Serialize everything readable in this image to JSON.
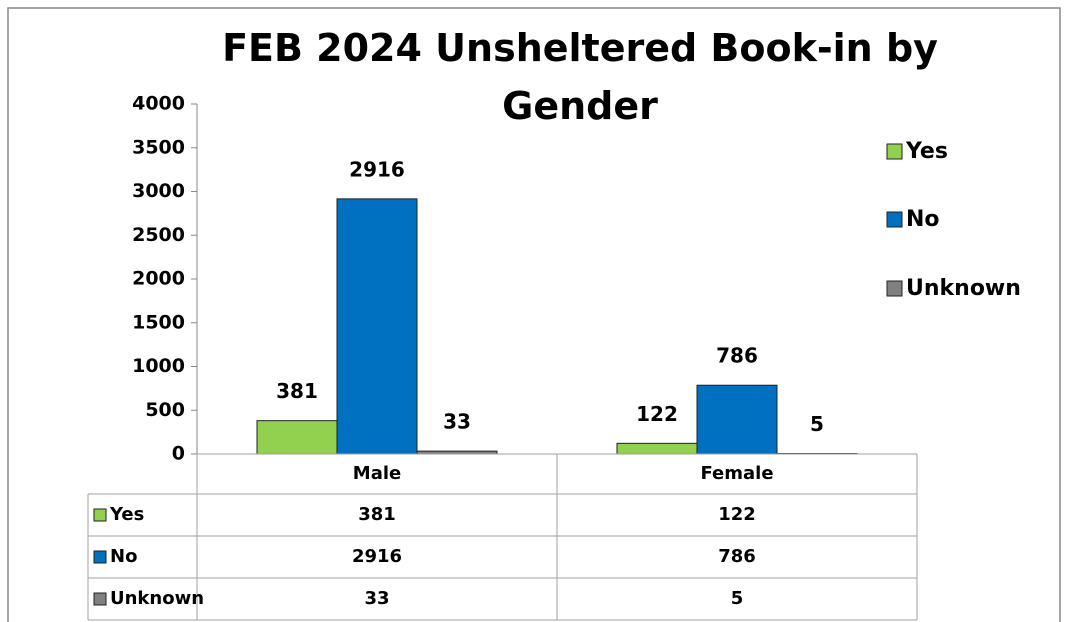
{
  "chart_data": {
    "type": "bar",
    "title": "FEB 2024 Unsheltered Book-in by Gender",
    "categories": [
      "Male",
      "Female"
    ],
    "series": [
      {
        "name": "Yes",
        "color": "#92d050",
        "values": [
          381,
          122
        ]
      },
      {
        "name": "No",
        "color": "#0070c0",
        "values": [
          2916,
          786
        ]
      },
      {
        "name": "Unknown",
        "color": "#808080",
        "values": [
          33,
          5
        ]
      }
    ],
    "ylim": [
      0,
      4000
    ],
    "yticks": [
      0,
      500,
      1000,
      1500,
      2000,
      2500,
      3000,
      3500,
      4000
    ],
    "legend": "right",
    "data_table": true
  }
}
